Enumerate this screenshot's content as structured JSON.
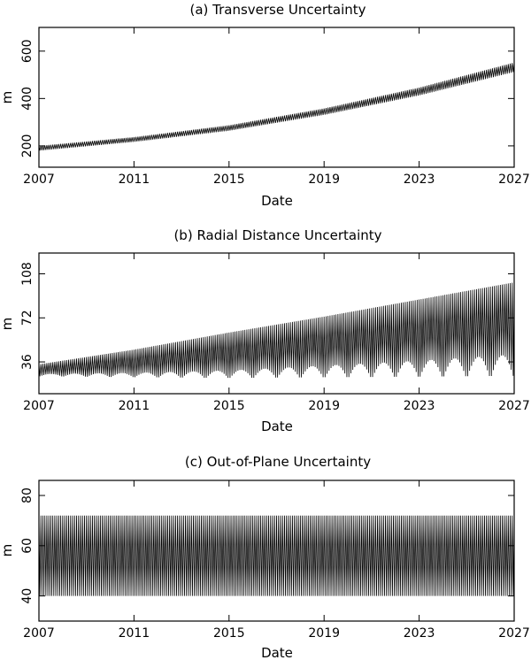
{
  "chart_data": [
    {
      "type": "line",
      "title": "(a) Transverse Uncertainty",
      "xlabel": "Date",
      "ylabel": "m",
      "xlim": [
        2007,
        2027
      ],
      "ylim": [
        110,
        700
      ],
      "xticks": [
        2007,
        2011,
        2015,
        2019,
        2023,
        2027
      ],
      "xtick_labels": [
        "2007",
        "2011",
        "2015",
        "2019",
        "2023",
        "2027"
      ],
      "yticks": [
        200,
        400,
        600
      ],
      "ytick_labels": [
        "200",
        "400",
        "600"
      ],
      "series": [
        {
          "style": "dense-oscillating-band",
          "oscillations_per_year": 12,
          "x": [
            2007,
            2011,
            2015,
            2019,
            2023,
            2027
          ],
          "upper": [
            200,
            237,
            287,
            358,
            446,
            552
          ],
          "lower": [
            180,
            217,
            264,
            331,
            413,
            512
          ]
        }
      ],
      "grid": false
    },
    {
      "type": "line",
      "title": "(b) Radial Distance Uncertainty",
      "xlabel": "Date",
      "ylabel": "m",
      "xlim": [
        2007,
        2027
      ],
      "ylim": [
        10,
        125
      ],
      "xticks": [
        2007,
        2011,
        2015,
        2019,
        2023,
        2027
      ],
      "xtick_labels": [
        "2007",
        "2011",
        "2015",
        "2019",
        "2023",
        "2027"
      ],
      "yticks": [
        36,
        72,
        108
      ],
      "ytick_labels": [
        "36",
        "72",
        "108"
      ],
      "series": [
        {
          "style": "dense-oscillating-band",
          "oscillations_per_year": 12,
          "x": [
            2007,
            2011,
            2015,
            2019,
            2023,
            2027
          ],
          "upper": [
            34,
            46,
            60,
            73,
            87,
            101
          ],
          "lower_min": [
            24,
            23,
            22,
            22,
            22,
            22
          ],
          "lower_peak": [
            26,
            27,
            29,
            33,
            37,
            42
          ]
        }
      ],
      "grid": false
    },
    {
      "type": "line",
      "title": "(c) Out-of-Plane Uncertainty",
      "xlabel": "Date",
      "ylabel": "m",
      "xlim": [
        2007,
        2027
      ],
      "ylim": [
        30,
        86
      ],
      "xticks": [
        2007,
        2011,
        2015,
        2019,
        2023,
        2027
      ],
      "xtick_labels": [
        "2007",
        "2011",
        "2015",
        "2019",
        "2023",
        "2027"
      ],
      "yticks": [
        40,
        60,
        80
      ],
      "ytick_labels": [
        "40",
        "60",
        "80"
      ],
      "series": [
        {
          "style": "dense-oscillating-band",
          "oscillations_per_year": 12,
          "x": [
            2007,
            2011,
            2015,
            2019,
            2023,
            2027
          ],
          "upper": [
            72,
            72,
            72,
            72,
            72,
            72
          ],
          "lower": [
            40,
            40,
            40,
            40,
            40,
            40
          ]
        }
      ],
      "grid": false
    }
  ],
  "colors": {
    "ink": "#000000",
    "background": "#ffffff"
  }
}
